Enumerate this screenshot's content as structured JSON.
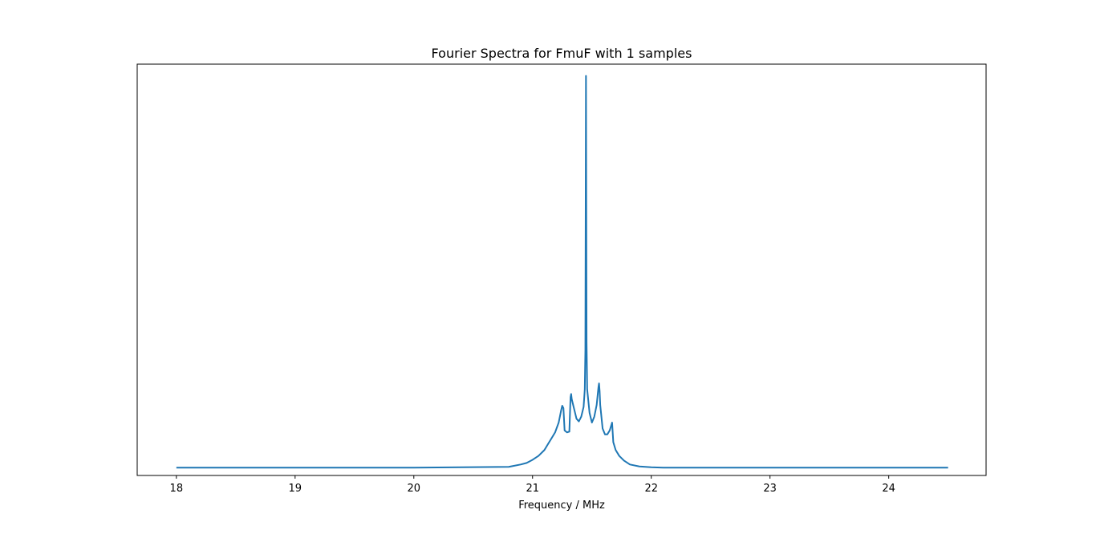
{
  "chart_data": {
    "type": "line",
    "title": "Fourier Spectra for FmuF with 1 samples",
    "xlabel": "Frequency / MHz",
    "ylabel": "",
    "xlim": [
      17.67,
      24.82
    ],
    "ylim": [
      -0.02,
      1.03
    ],
    "xticks": [
      18,
      19,
      20,
      21,
      22,
      23,
      24
    ],
    "yticks_shown": false,
    "grid": false,
    "color": "#1f77b4",
    "series": [
      {
        "x": [
          18.0,
          20.0,
          20.8,
          20.9,
          20.95,
          21.0,
          21.05,
          21.1,
          21.13,
          21.16,
          21.19,
          21.22,
          21.24,
          21.25,
          21.26,
          21.27,
          21.29,
          21.31,
          21.32,
          21.325,
          21.33,
          21.35,
          21.37,
          21.39,
          21.41,
          21.43,
          21.44,
          21.445,
          21.45,
          21.455,
          21.46,
          21.48,
          21.5,
          21.52,
          21.54,
          21.555,
          21.56,
          21.565,
          21.57,
          21.59,
          21.61,
          21.63,
          21.65,
          21.665,
          21.67,
          21.675,
          21.68,
          21.7,
          21.73,
          21.77,
          21.82,
          21.9,
          22.0,
          22.1,
          24.5
        ],
        "y": [
          0.0,
          0.0,
          0.002,
          0.008,
          0.012,
          0.02,
          0.03,
          0.045,
          0.06,
          0.075,
          0.09,
          0.115,
          0.145,
          0.158,
          0.152,
          0.095,
          0.09,
          0.092,
          0.18,
          0.188,
          0.175,
          0.15,
          0.125,
          0.118,
          0.13,
          0.155,
          0.2,
          0.3,
          1.0,
          0.32,
          0.2,
          0.14,
          0.115,
          0.13,
          0.16,
          0.205,
          0.215,
          0.195,
          0.16,
          0.1,
          0.085,
          0.085,
          0.095,
          0.11,
          0.115,
          0.09,
          0.065,
          0.045,
          0.03,
          0.018,
          0.008,
          0.003,
          0.001,
          0.0,
          0.0
        ]
      }
    ]
  }
}
